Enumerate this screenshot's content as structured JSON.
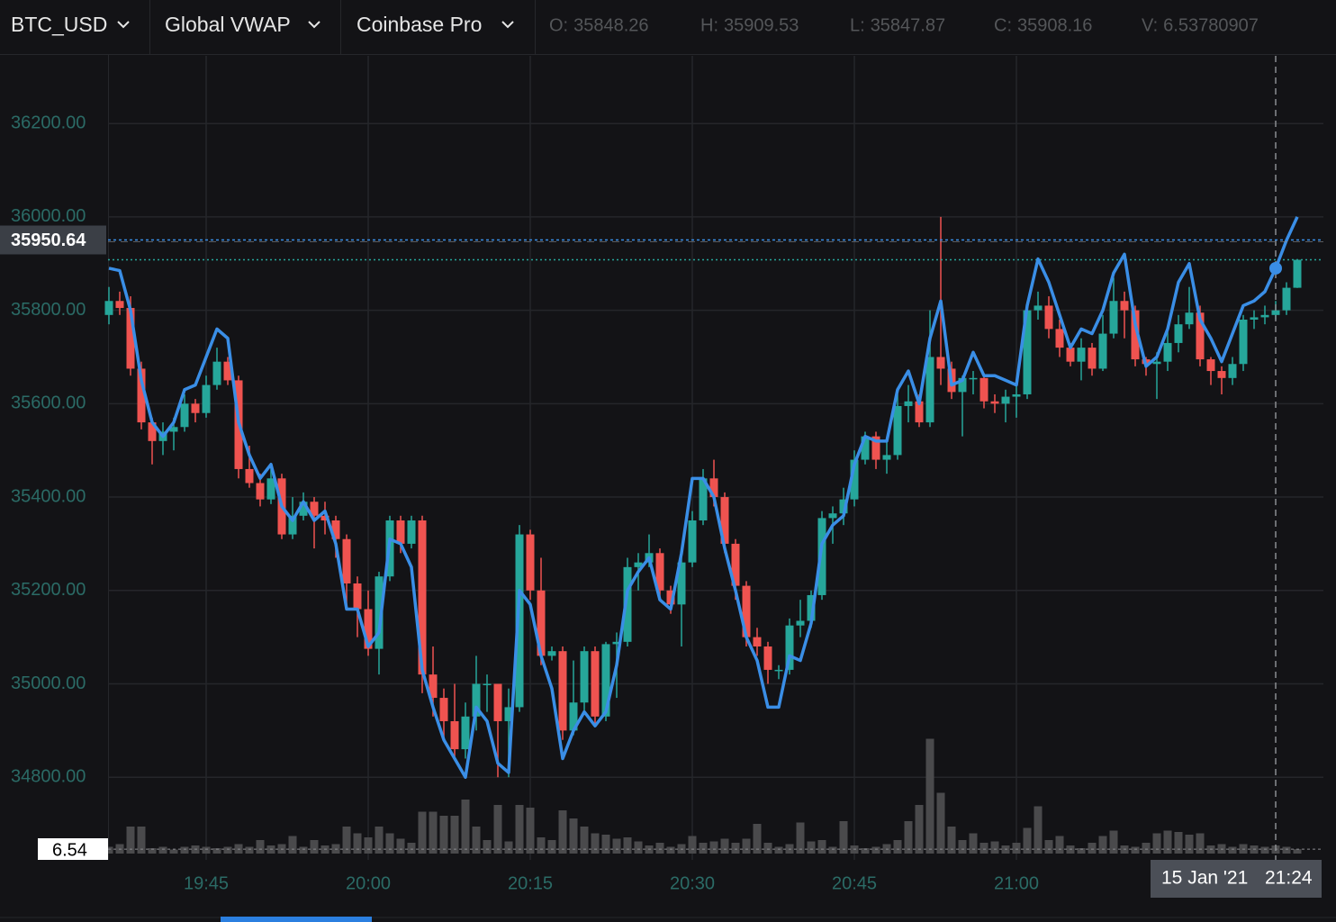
{
  "header": {
    "symbol": "BTC_USD",
    "exchange": "Coinbase Pro",
    "ohlcv_labels": [
      "O:",
      "H:",
      "L:",
      "C:",
      "V:"
    ]
  },
  "chart_data": {
    "type": "candlestick",
    "categories": [
      null,
      null,
      null,
      null,
      null,
      null,
      null,
      null,
      null,
      "19:45",
      null,
      null,
      null,
      null,
      null,
      null,
      null,
      null,
      null,
      null,
      null,
      null,
      null,
      null,
      "20:00",
      null,
      null,
      null,
      null,
      null,
      null,
      null,
      null,
      null,
      null,
      null,
      null,
      null,
      null,
      "20:15",
      null,
      null,
      null,
      null,
      null,
      null,
      null,
      null,
      null,
      null,
      null,
      null,
      null,
      null,
      "20:30",
      null,
      null,
      null,
      null,
      null,
      null,
      null,
      null,
      null,
      null,
      null,
      null,
      null,
      null,
      "20:45",
      null,
      null,
      null,
      null,
      null,
      null,
      null,
      null,
      null,
      null,
      null,
      null,
      null,
      null,
      "21:00",
      null,
      null,
      null,
      null,
      null,
      null,
      null,
      null,
      null,
      null,
      null,
      null,
      null,
      null,
      null,
      null,
      null,
      null,
      null,
      null,
      null,
      null,
      null,
      null,
      null,
      null
    ],
    "open": [
      35790,
      35820,
      35805,
      35675,
      35560,
      35520,
      35540,
      35550,
      35600,
      35580,
      35640,
      35690,
      35650,
      35460,
      35430,
      35395,
      35440,
      35320,
      35360,
      35390,
      35360,
      35350,
      35310,
      35215,
      35160,
      35075,
      35230,
      35350,
      35300,
      35350,
      35020,
      34970,
      34920,
      34860,
      34930,
      35000,
      35000,
      34920,
      34950,
      35320,
      35200,
      35060,
      35070,
      34900,
      34960,
      35070,
      34930,
      35085,
      35090,
      35250,
      35260,
      35280,
      35200,
      35170,
      35260,
      35350,
      35440,
      35400,
      35300,
      35210,
      35100,
      35080,
      35030,
      35030,
      35125,
      35135,
      35190,
      35355,
      35365,
      35395,
      35480,
      35530,
      35480,
      35490,
      35595,
      35605,
      35560,
      35700,
      35675,
      35625,
      35655,
      35655,
      35605,
      35600,
      35615,
      35620,
      35800,
      35810,
      35760,
      35720,
      35690,
      35720,
      35675,
      35750,
      35820,
      35800,
      35695,
      35685,
      35690,
      35730,
      35770,
      35795,
      35695,
      35670,
      35655,
      35685,
      35780,
      35785,
      35790,
      35800,
      35848.26
    ],
    "high": [
      35850,
      35840,
      35830,
      35690,
      35570,
      35560,
      35570,
      35620,
      35610,
      35660,
      35720,
      35700,
      35660,
      35510,
      35450,
      35470,
      35450,
      35400,
      35410,
      35400,
      35390,
      35360,
      35320,
      35230,
      35200,
      35240,
      35360,
      35360,
      35360,
      35360,
      35080,
      34990,
      35000,
      34960,
      35060,
      35020,
      35000,
      34990,
      35340,
      35330,
      35270,
      35080,
      35080,
      35050,
      35080,
      35080,
      35090,
      35110,
      35270,
      35280,
      35320,
      35290,
      35210,
      35280,
      35370,
      35460,
      35480,
      35410,
      35310,
      35220,
      35120,
      35090,
      35040,
      35140,
      35180,
      35200,
      35370,
      35380,
      35420,
      35500,
      35540,
      35540,
      35520,
      35620,
      35640,
      35620,
      35800,
      36000,
      35690,
      35660,
      35670,
      35660,
      35620,
      35630,
      35640,
      35810,
      35840,
      35830,
      35780,
      35730,
      35740,
      35730,
      35790,
      35870,
      35840,
      35810,
      35700,
      35710,
      35760,
      35790,
      35850,
      35810,
      35700,
      35680,
      35700,
      35790,
      35800,
      35810,
      35820,
      35860,
      35909.53
    ],
    "low": [
      35770,
      35790,
      35660,
      35545,
      35470,
      35490,
      35500,
      35540,
      35560,
      35570,
      35630,
      35640,
      35440,
      35420,
      35380,
      35385,
      35310,
      35310,
      35350,
      35290,
      35320,
      35270,
      35160,
      35100,
      35060,
      35020,
      35220,
      35280,
      35290,
      34980,
      34930,
      34880,
      34840,
      34840,
      34900,
      34940,
      34800,
      34800,
      34940,
      35180,
      35040,
      35050,
      34880,
      34890,
      34940,
      34910,
      34920,
      34970,
      35080,
      35200,
      35250,
      35180,
      35150,
      35080,
      35250,
      35340,
      35380,
      35280,
      35180,
      35080,
      35060,
      35000,
      35010,
      35020,
      35100,
      35120,
      35180,
      35300,
      35340,
      35380,
      35470,
      35460,
      35450,
      35480,
      35560,
      35550,
      35550,
      35640,
      35610,
      35530,
      35620,
      35590,
      35580,
      35560,
      35570,
      35610,
      35780,
      35740,
      35700,
      35680,
      35650,
      35660,
      35670,
      35740,
      35740,
      35680,
      35660,
      35610,
      35670,
      35710,
      35760,
      35680,
      35640,
      35620,
      35640,
      35670,
      35760,
      35770,
      35780,
      35790,
      35847.87
    ],
    "close": [
      35820,
      35805,
      35675,
      35560,
      35520,
      35540,
      35550,
      35600,
      35580,
      35640,
      35690,
      35650,
      35460,
      35430,
      35395,
      35440,
      35320,
      35360,
      35390,
      35360,
      35350,
      35310,
      35215,
      35160,
      35075,
      35230,
      35350,
      35300,
      35350,
      35020,
      34970,
      34920,
      34860,
      34930,
      35000,
      35000,
      34920,
      34950,
      35320,
      35200,
      35060,
      35070,
      34900,
      34960,
      35070,
      34930,
      35085,
      35090,
      35250,
      35260,
      35280,
      35200,
      35170,
      35260,
      35350,
      35440,
      35400,
      35300,
      35210,
      35100,
      35080,
      35030,
      35030,
      35125,
      35135,
      35190,
      35355,
      35365,
      35395,
      35480,
      35530,
      35480,
      35490,
      35595,
      35605,
      35560,
      35700,
      35675,
      35625,
      35655,
      35655,
      35605,
      35600,
      35615,
      35620,
      35800,
      35810,
      35760,
      35720,
      35690,
      35720,
      35675,
      35750,
      35820,
      35800,
      35695,
      35685,
      35690,
      35730,
      35770,
      35795,
      35695,
      35670,
      35655,
      35685,
      35780,
      35785,
      35790,
      35800,
      35848.26,
      35908.16
    ],
    "volume": [
      10,
      14,
      40,
      40,
      8,
      10,
      6,
      10,
      12,
      10,
      8,
      10,
      14,
      10,
      20,
      12,
      14,
      26,
      10,
      20,
      12,
      14,
      40,
      30,
      24,
      40,
      30,
      22,
      16,
      62,
      62,
      56,
      56,
      80,
      40,
      20,
      72,
      18,
      72,
      68,
      24,
      20,
      64,
      52,
      40,
      30,
      28,
      22,
      24,
      18,
      12,
      16,
      10,
      14,
      26,
      16,
      18,
      22,
      16,
      22,
      44,
      16,
      10,
      14,
      46,
      18,
      20,
      10,
      48,
      12,
      8,
      10,
      14,
      20,
      48,
      72,
      170,
      90,
      40,
      20,
      30,
      16,
      18,
      12,
      16,
      38,
      70,
      20,
      26,
      12,
      8,
      16,
      26,
      34,
      12,
      10,
      16,
      30,
      34,
      32,
      28,
      30,
      12,
      14,
      10,
      14,
      12,
      10,
      12,
      10,
      6.53780907
    ],
    "volume_value_label": "6.54",
    "up_color": "#26a69a",
    "down_color": "#ef5350",
    "volume_color": "#4a4a4c",
    "series": [
      {
        "name": "Global VWAP",
        "color": "#3a8ee6",
        "values": [
          35890,
          35885,
          35800,
          35650,
          35560,
          35530,
          35560,
          35630,
          35640,
          35700,
          35760,
          35740,
          35560,
          35490,
          35440,
          35470,
          35380,
          35350,
          35390,
          35350,
          35370,
          35300,
          35160,
          35160,
          35080,
          35110,
          35310,
          35300,
          35250,
          35030,
          34950,
          34880,
          34840,
          34800,
          34950,
          34920,
          34830,
          34810,
          35200,
          35170,
          35060,
          34990,
          34840,
          34900,
          34940,
          34910,
          34940,
          35040,
          35200,
          35240,
          35270,
          35180,
          35160,
          35280,
          35440,
          35440,
          35400,
          35290,
          35200,
          35100,
          35050,
          34950,
          34950,
          35060,
          35050,
          35130,
          35300,
          35340,
          35360,
          35470,
          35530,
          35520,
          35520,
          35630,
          35670,
          35600,
          35740,
          35820,
          35640,
          35650,
          35710,
          35660,
          35660,
          35650,
          35640,
          35810,
          35910,
          35860,
          35790,
          35720,
          35760,
          35750,
          35800,
          35880,
          35920,
          35770,
          35680,
          35700,
          35760,
          35860,
          35900,
          35780,
          35740,
          35690,
          35750,
          35810,
          35820,
          35840,
          35890,
          35950,
          36000
        ]
      }
    ],
    "ylim": [
      34623,
      36345
    ],
    "yticks": [
      {
        "value": 34800,
        "label": "34800.00"
      },
      {
        "value": 35000,
        "label": "35000.00"
      },
      {
        "value": 35200,
        "label": "35200.00"
      },
      {
        "value": 35400,
        "label": "35400.00"
      },
      {
        "value": 35600,
        "label": "35600.00"
      },
      {
        "value": 35800,
        "label": "35800.00"
      },
      {
        "value": 36000,
        "label": "36000.00"
      },
      {
        "value": 36200,
        "label": "36200.00"
      }
    ],
    "volume_ylim": [
      0,
      240
    ],
    "grid": true,
    "crosshair": {
      "date": "15 Jan '21",
      "time": "21:24",
      "price": 35950.64
    }
  }
}
